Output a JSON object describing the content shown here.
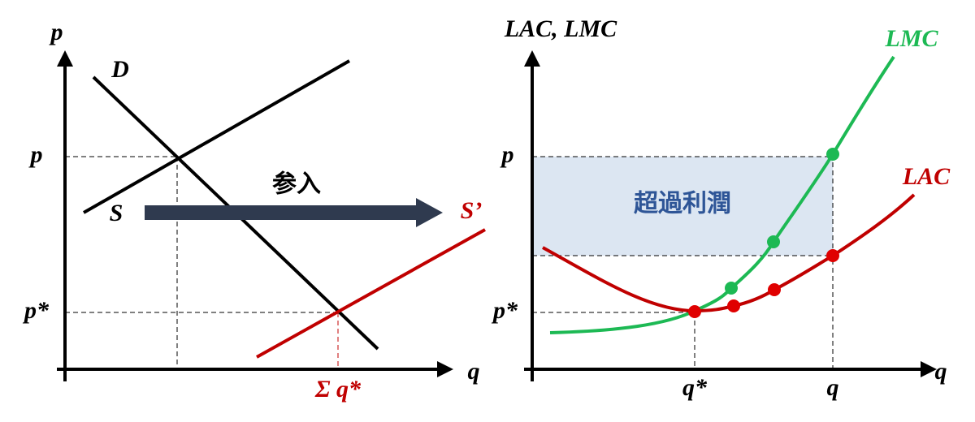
{
  "left": {
    "y_axis": "p",
    "x_axis": "q",
    "demand": "D",
    "supply": "S",
    "supply_new": "S’",
    "entry": "参入",
    "price": "p",
    "price_eq": "p*",
    "quantity_total": "Σ q*"
  },
  "right": {
    "y_axis": "LAC, LMC",
    "x_axis": "q",
    "lmc": "LMC",
    "lac": "LAC",
    "profit": "超過利潤",
    "price": "p",
    "price_eq": "p*",
    "quantity_eq": "q*",
    "quantity": "q"
  }
}
